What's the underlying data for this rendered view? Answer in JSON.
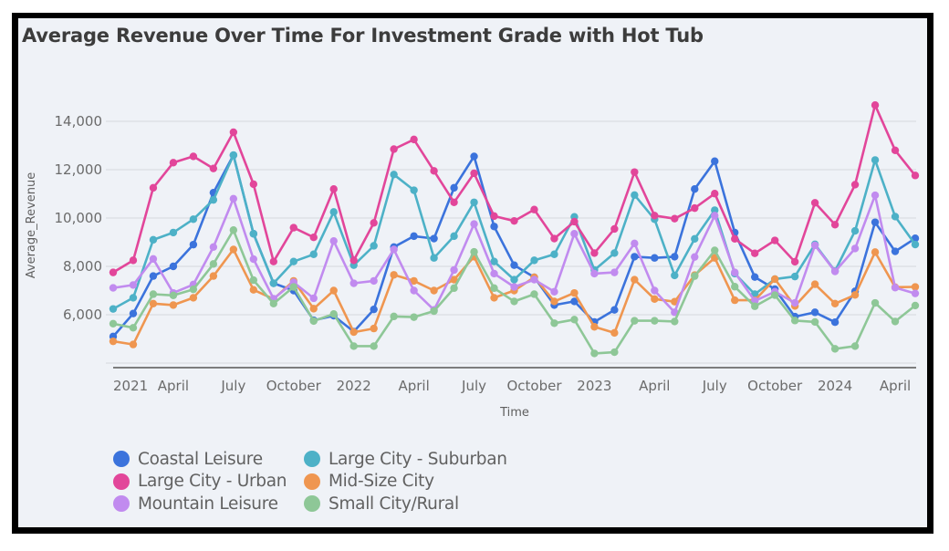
{
  "chart_data": {
    "type": "line",
    "title": "Average Revenue Over Time For Investment Grade with Hot Tub",
    "xlabel": "Time",
    "ylabel": "Average_Revenue",
    "ylim": [
      3800,
      15000
    ],
    "yticks": [
      {
        "value": 6000,
        "label": "6,000"
      },
      {
        "value": 8000,
        "label": "8,000"
      },
      {
        "value": 10000,
        "label": "10,000"
      },
      {
        "value": 12000,
        "label": "12,000"
      },
      {
        "value": 14000,
        "label": "14,000"
      }
    ],
    "grid": true,
    "legend_position": "bottom-left",
    "x": [
      "2021-01",
      "2021-02",
      "2021-03",
      "2021-04",
      "2021-05",
      "2021-06",
      "2021-07",
      "2021-08",
      "2021-09",
      "2021-10",
      "2021-11",
      "2021-12",
      "2022-01",
      "2022-02",
      "2022-03",
      "2022-04",
      "2022-05",
      "2022-06",
      "2022-07",
      "2022-08",
      "2022-09",
      "2022-10",
      "2022-11",
      "2022-12",
      "2023-01",
      "2023-02",
      "2023-03",
      "2023-04",
      "2023-05",
      "2023-06",
      "2023-07",
      "2023-08",
      "2023-09",
      "2023-10",
      "2023-11",
      "2023-12",
      "2024-01",
      "2024-02",
      "2024-03",
      "2024-04",
      "2024-05"
    ],
    "xticks": [
      {
        "index": 0,
        "label": "2021"
      },
      {
        "index": 3,
        "label": "April"
      },
      {
        "index": 6,
        "label": "July"
      },
      {
        "index": 9,
        "label": "October"
      },
      {
        "index": 12,
        "label": "2022"
      },
      {
        "index": 15,
        "label": "April"
      },
      {
        "index": 18,
        "label": "July"
      },
      {
        "index": 21,
        "label": "October"
      },
      {
        "index": 24,
        "label": "2023"
      },
      {
        "index": 27,
        "label": "April"
      },
      {
        "index": 30,
        "label": "July"
      },
      {
        "index": 33,
        "label": "October"
      },
      {
        "index": 36,
        "label": "2024"
      },
      {
        "index": 39,
        "label": "April"
      }
    ],
    "series": [
      {
        "name": "Coastal Leisure",
        "color": "#3b73dc",
        "values": [
          5100,
          6050,
          7600,
          8000,
          8900,
          11050,
          12600,
          9350,
          7300,
          7000,
          5770,
          5960,
          5300,
          6220,
          8800,
          9250,
          9150,
          11250,
          12550,
          9650,
          8050,
          7550,
          6400,
          6550,
          5700,
          6200,
          8400,
          8350,
          8400,
          11200,
          12350,
          9400,
          7560,
          7060,
          5920,
          6100,
          5690,
          6970,
          9825,
          8620,
          9160
        ]
      },
      {
        "name": "Large City - Suburban",
        "color": "#4db1c7",
        "values": [
          6240,
          6700,
          9100,
          9400,
          9950,
          10750,
          12600,
          9350,
          7300,
          8200,
          8500,
          10250,
          8050,
          8850,
          11800,
          11150,
          8350,
          9250,
          10650,
          8200,
          7450,
          8250,
          8500,
          10050,
          7850,
          8550,
          10950,
          9950,
          7625,
          9140,
          10325,
          7700,
          6850,
          7475,
          7580,
          8910,
          7810,
          9470,
          12400,
          10060,
          8905
        ]
      },
      {
        "name": "Large City - Urban",
        "color": "#e2469a",
        "values": [
          7750,
          8250,
          11250,
          12290,
          12550,
          12050,
          13550,
          11400,
          8200,
          9600,
          9200,
          11200,
          8250,
          9800,
          12850,
          13250,
          11950,
          10650,
          11850,
          10080,
          9880,
          10350,
          9150,
          9850,
          8550,
          9550,
          11900,
          10100,
          9975,
          10410,
          11010,
          9140,
          8540,
          9075,
          8190,
          10630,
          9725,
          11380,
          14670,
          12800,
          11760
        ]
      },
      {
        "name": "Mid-Size City",
        "color": "#ef9650",
        "values": [
          4900,
          4770,
          6460,
          6400,
          6700,
          7600,
          8700,
          7030,
          6650,
          7400,
          6250,
          7000,
          5280,
          5430,
          7650,
          7400,
          7000,
          7450,
          8400,
          6700,
          7000,
          7550,
          6550,
          6900,
          5500,
          5250,
          7450,
          6650,
          6540,
          7640,
          8350,
          6600,
          6600,
          7475,
          6360,
          7260,
          6460,
          6820,
          8590,
          7140,
          7150
        ]
      },
      {
        "name": "Mountain Leisure",
        "color": "#c18bef",
        "values": [
          7110,
          7230,
          8310,
          6900,
          7250,
          8800,
          10800,
          8300,
          6660,
          7340,
          6680,
          9050,
          7300,
          7400,
          8700,
          7000,
          6200,
          7850,
          9750,
          7700,
          7150,
          7450,
          6950,
          9350,
          7700,
          7750,
          8950,
          7000,
          6100,
          8390,
          10100,
          7750,
          6575,
          6950,
          6490,
          8870,
          7790,
          8740,
          10940,
          7120,
          6880
        ]
      },
      {
        "name": "Small City/Rural",
        "color": "#8ec797",
        "values": [
          5630,
          5460,
          6850,
          6800,
          7050,
          8100,
          9500,
          7430,
          6460,
          7150,
          5740,
          6030,
          4700,
          4700,
          5930,
          5900,
          6150,
          7100,
          8600,
          7100,
          6550,
          6850,
          5650,
          5800,
          4400,
          4450,
          5750,
          5750,
          5720,
          7600,
          8660,
          7160,
          6350,
          6810,
          5760,
          5700,
          4590,
          4700,
          6490,
          5720,
          6380
        ]
      }
    ],
    "legend_order": [
      "Coastal Leisure",
      "Large City - Suburban",
      "Large City - Urban",
      "Mid-Size City",
      "Mountain Leisure",
      "Small City/Rural"
    ]
  }
}
